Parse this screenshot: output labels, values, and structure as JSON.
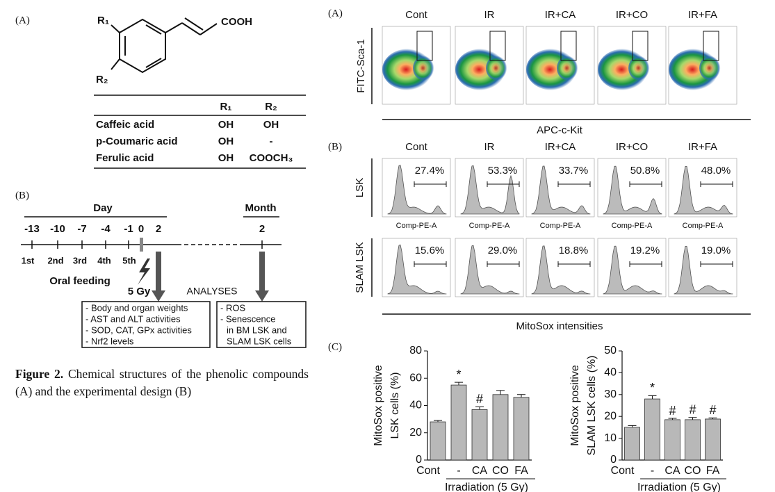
{
  "left": {
    "panel_a": {
      "label": "(A)",
      "r1": "R₁",
      "r2": "R₂",
      "acid": "COOH",
      "table": {
        "header": [
          "R₁",
          "R₂"
        ],
        "rows": [
          [
            "Caffeic acid",
            "OH",
            "OH"
          ],
          [
            "p-Coumaric acid",
            "OH",
            "-"
          ],
          [
            "Ferulic acid",
            "OH",
            "COOCH₃"
          ]
        ]
      }
    },
    "panel_b": {
      "label": "(B)",
      "day": "Day",
      "month": "Month",
      "day_ticks": [
        "-13",
        "-10",
        "-7",
        "-4",
        "-1",
        "0",
        "2"
      ],
      "month_tick": "2",
      "feedings": [
        "1st",
        "2nd",
        "3rd",
        "4th",
        "5th"
      ],
      "oral": "Oral feeding",
      "dose": "5 Gy",
      "analyses": "ANALYSES",
      "box1": [
        "- Body and organ weights",
        "- AST and ALT activities",
        "- SOD, CAT, GPx activities",
        "- Nrf2 levels"
      ],
      "box2": [
        "- ROS",
        "- Senescence",
        "in BM LSK and",
        "SLAM LSK cells"
      ]
    },
    "caption": {
      "label": "Figure 2.",
      "text": "Chemical structures of the phenolic compounds (A) and the experimental design (B)"
    }
  },
  "flow": {
    "label_a": "(A)",
    "groups": [
      "Cont",
      "IR",
      "IR+CA",
      "IR+CO",
      "IR+FA"
    ],
    "y_label": "FITC-Sca-1",
    "x_label": "APC-c-Kit",
    "label_b": "(B)",
    "rows": [
      {
        "name": "LSK",
        "axis": "Comp-PE-A",
        "percent": [
          "27.4%",
          "53.3%",
          "33.7%",
          "50.8%",
          "48.0%"
        ]
      },
      {
        "name": "SLAM LSK",
        "percent": [
          "15.6%",
          "29.0%",
          "18.8%",
          "19.2%",
          "19.0%"
        ]
      }
    ],
    "x_label_b": "MitoSox intensities"
  },
  "label_c": "(C)",
  "chart_data": [
    {
      "type": "bar",
      "categories": [
        "Cont",
        "-",
        "CA",
        "CO",
        "FA"
      ],
      "values": [
        28,
        55,
        37,
        48,
        46
      ],
      "errors": [
        1,
        2,
        2,
        3,
        2
      ],
      "markers": [
        null,
        "*",
        "#",
        null,
        null
      ],
      "color": "#b8b8b8",
      "ylim": [
        0,
        80
      ],
      "yticks": [
        0,
        20,
        40,
        60,
        80
      ],
      "ylabel": [
        "MitoSox positive",
        "LSK cells (%)"
      ],
      "xlabel": "Irradiation (5 Gy)"
    },
    {
      "type": "bar",
      "categories": [
        "Cont",
        "-",
        "CA",
        "CO",
        "FA"
      ],
      "values": [
        15,
        28,
        18.5,
        18.5,
        18.8
      ],
      "errors": [
        0.8,
        1.5,
        0.6,
        1,
        0.5
      ],
      "markers": [
        null,
        "*",
        "#",
        "#",
        "#"
      ],
      "color": "#b8b8b8",
      "ylim": [
        0,
        50
      ],
      "yticks": [
        0,
        10,
        20,
        30,
        40,
        50
      ],
      "ylabel": [
        "MitoSox positive",
        "SLAM LSK cells (%)"
      ],
      "xlabel": "Irradiation (5 Gy)"
    }
  ]
}
